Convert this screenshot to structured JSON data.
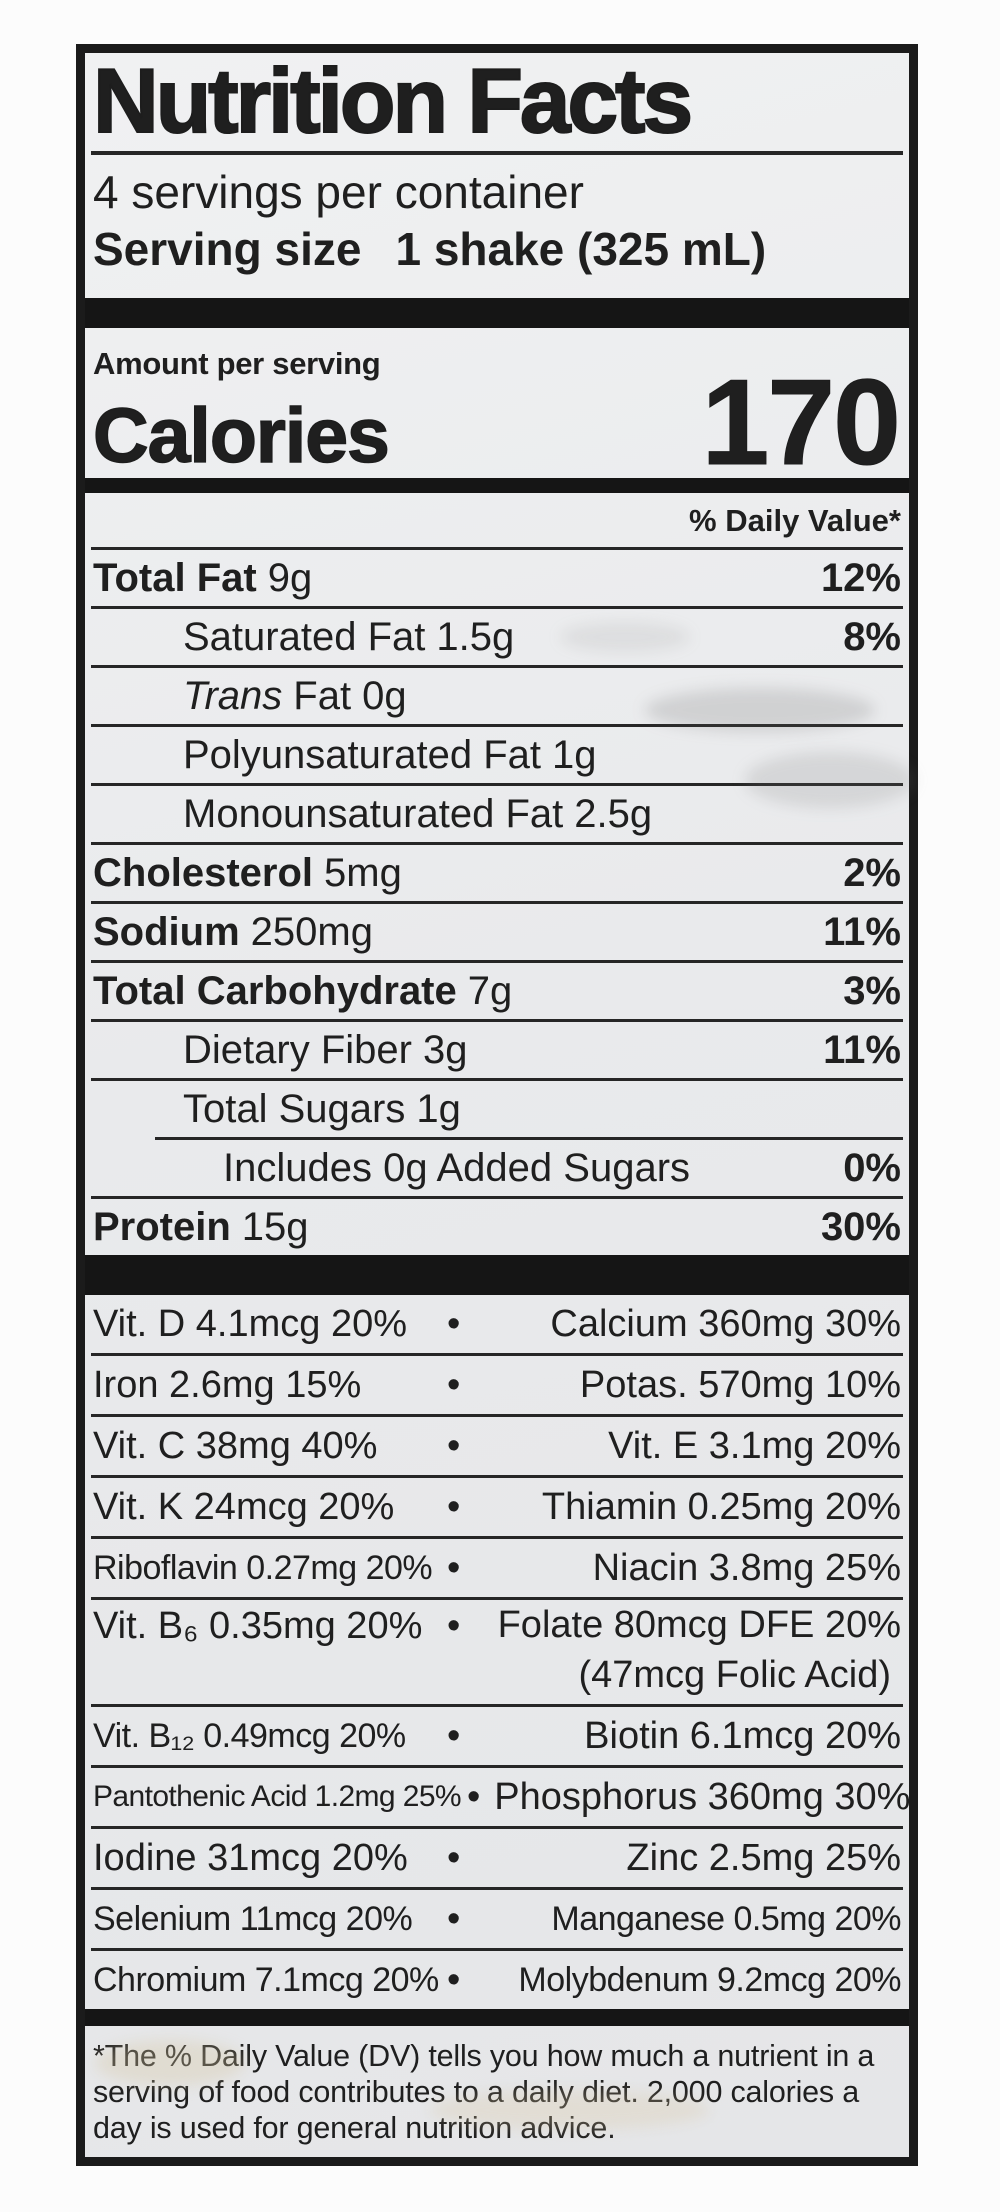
{
  "colors": {
    "page_bg": "#fcfcfc",
    "label_bg": "#eaebec",
    "border": "#1b1b1b",
    "text": "#1f1f1f",
    "bar": "#151515"
  },
  "label": {
    "title": "Nutrition Facts",
    "servings_per_container": "4 servings per container",
    "serving_size_label": "Serving size",
    "serving_size_value": "1 shake (325 mL)",
    "amount_per_serving": "Amount per serving",
    "calories_label": "Calories",
    "calories_value": "170",
    "daily_value_header": "% Daily Value*",
    "separator": "•",
    "nutrients": [
      {
        "name": "Total Fat",
        "amount": "9g",
        "dv": "12%"
      },
      {
        "name": "Saturated Fat",
        "amount": "1.5g",
        "dv": "8%"
      },
      {
        "name_italic": "Trans",
        "name": "Fat",
        "amount": "0g",
        "dv": ""
      },
      {
        "name": "Polyunsaturated Fat",
        "amount": "1g",
        "dv": ""
      },
      {
        "name": "Monounsaturated Fat",
        "amount": "2.5g",
        "dv": ""
      },
      {
        "name": "Cholesterol",
        "amount": "5mg",
        "dv": "2%"
      },
      {
        "name": "Sodium",
        "amount": "250mg",
        "dv": "11%"
      },
      {
        "name": "Total Carbohydrate",
        "amount": "7g",
        "dv": "3%"
      },
      {
        "name": "Dietary Fiber",
        "amount": "3g",
        "dv": "11%"
      },
      {
        "name": "Total Sugars",
        "amount": "1g",
        "dv": ""
      },
      {
        "name": "Includes 0g Added Sugars",
        "amount": "",
        "dv": "0%"
      },
      {
        "name": "Protein",
        "amount": "15g",
        "dv": "30%"
      }
    ],
    "micronutrients": [
      {
        "left": "Vit. D 4.1mcg 20%",
        "right": "Calcium 360mg 30%"
      },
      {
        "left": "Iron 2.6mg 15%",
        "right": "Potas. 570mg 10%"
      },
      {
        "left": "Vit. C 38mg 40%",
        "right": "Vit. E 3.1mg 20%"
      },
      {
        "left": "Vit. K 24mcg 20%",
        "right": "Thiamin 0.25mg 20%"
      },
      {
        "left": "Riboflavin 0.27mg 20%",
        "right": "Niacin 3.8mg 25%"
      },
      {
        "left": "Vit. B₆ 0.35mg 20%",
        "right": "Folate 80mcg DFE 20%",
        "right_note": "(47mcg Folic Acid)"
      },
      {
        "left": "Vit. B₁₂ 0.49mcg 20%",
        "right": "Biotin 6.1mcg 20%"
      },
      {
        "left": "Pantothenic Acid 1.2mg 25%",
        "right": "Phosphorus 360mg 30%"
      },
      {
        "left": "Iodine 31mcg 20%",
        "right": "Zinc 2.5mg 25%"
      },
      {
        "left": "Selenium 11mcg 20%",
        "right": "Manganese 0.5mg 20%"
      },
      {
        "left": "Chromium 7.1mcg 20%",
        "right": "Molybdenum 9.2mcg 20%"
      }
    ],
    "footnote": "*The % Daily Value (DV) tells you how much a nutrient in a serving of food contributes to a daily diet. 2,000 calories a day is used for general nutrition advice."
  }
}
